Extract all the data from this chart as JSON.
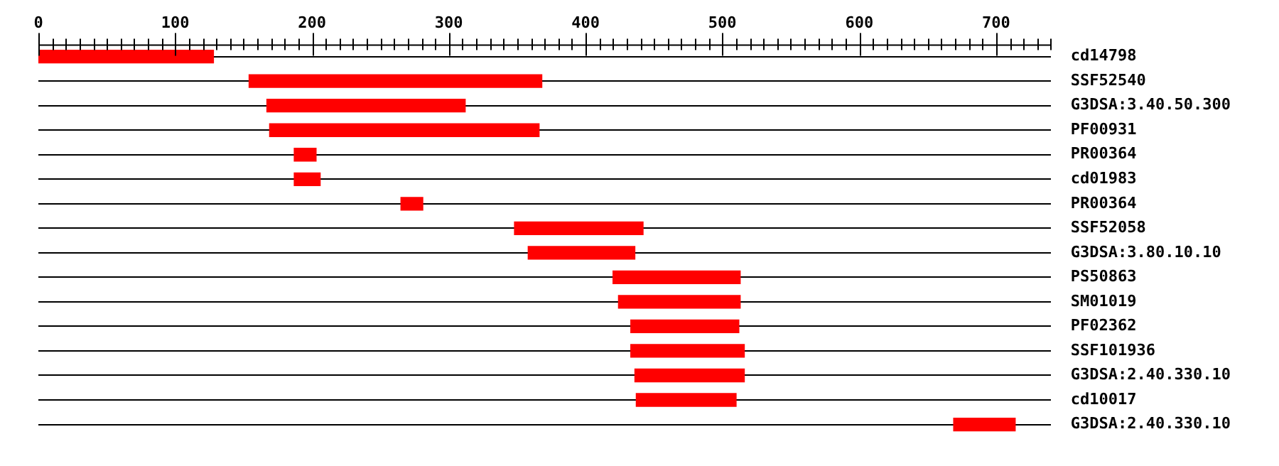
{
  "chart_data": {
    "type": "bar",
    "orientation": "horizontal",
    "grid": "y",
    "legend": false,
    "categories": [
      "cd14798",
      "SSF52540",
      "G3DSA:3.40.50.300",
      "PF00931",
      "PR00364",
      "cd01983",
      "PR00364",
      "SSF52058",
      "G3DSA:3.80.10.10",
      "PS50863",
      "SM01019",
      "PF02362",
      "SSF101936",
      "G3DSA:2.40.330.10",
      "cd10017",
      "G3DSA:2.40.330.10"
    ],
    "base": [
      0,
      154,
      167,
      169,
      187,
      187,
      265,
      348,
      358,
      420,
      424,
      433,
      433,
      436,
      437,
      669
    ],
    "values": [
      128,
      214,
      145,
      197,
      16,
      19,
      16,
      94,
      78,
      93,
      89,
      79,
      83,
      80,
      73,
      45
    ],
    "color": "#ff0000",
    "xlim": [
      0,
      740
    ],
    "xticks": [
      0,
      {
        "value": 10,
        "label": null
      },
      {
        "value": 20,
        "label": null
      },
      {
        "value": 30,
        "label": null
      },
      {
        "value": 40,
        "label": null
      },
      {
        "value": 50,
        "label": null
      },
      {
        "value": 60,
        "label": null
      },
      {
        "value": 70,
        "label": null
      },
      {
        "value": 80,
        "label": null
      },
      {
        "value": 90,
        "label": null
      },
      100,
      {
        "value": 110,
        "label": null
      },
      {
        "value": 120,
        "label": null
      },
      {
        "value": 130,
        "label": null
      },
      {
        "value": 140,
        "label": null
      },
      {
        "value": 150,
        "label": null
      },
      {
        "value": 160,
        "label": null
      },
      {
        "value": 170,
        "label": null
      },
      {
        "value": 180,
        "label": null
      },
      {
        "value": 190,
        "label": null
      },
      200,
      {
        "value": 210,
        "label": null
      },
      {
        "value": 220,
        "label": null
      },
      {
        "value": 230,
        "label": null
      },
      {
        "value": 240,
        "label": null
      },
      {
        "value": 250,
        "label": null
      },
      {
        "value": 260,
        "label": null
      },
      {
        "value": 270,
        "label": null
      },
      {
        "value": 280,
        "label": null
      },
      {
        "value": 290,
        "label": null
      },
      300,
      {
        "value": 310,
        "label": null
      },
      {
        "value": 320,
        "label": null
      },
      {
        "value": 330,
        "label": null
      },
      {
        "value": 340,
        "label": null
      },
      {
        "value": 350,
        "label": null
      },
      {
        "value": 360,
        "label": null
      },
      {
        "value": 370,
        "label": null
      },
      {
        "value": 380,
        "label": null
      },
      {
        "value": 390,
        "label": null
      },
      400,
      {
        "value": 410,
        "label": null
      },
      {
        "value": 420,
        "label": null
      },
      {
        "value": 430,
        "label": null
      },
      {
        "value": 440,
        "label": null
      },
      {
        "value": 450,
        "label": null
      },
      {
        "value": 460,
        "label": null
      },
      {
        "value": 470,
        "label": null
      },
      {
        "value": 480,
        "label": null
      },
      {
        "value": 490,
        "label": null
      },
      500,
      {
        "value": 510,
        "label": null
      },
      {
        "value": 520,
        "label": null
      },
      {
        "value": 530,
        "label": null
      },
      {
        "value": 540,
        "label": null
      },
      {
        "value": 550,
        "label": null
      },
      {
        "value": 560,
        "label": null
      },
      {
        "value": 570,
        "label": null
      },
      {
        "value": 580,
        "label": null
      },
      {
        "value": 590,
        "label": null
      },
      600,
      {
        "value": 610,
        "label": null
      },
      {
        "value": 620,
        "label": null
      },
      {
        "value": 630,
        "label": null
      },
      {
        "value": 640,
        "label": null
      },
      {
        "value": 650,
        "label": null
      },
      {
        "value": 660,
        "label": null
      },
      {
        "value": 670,
        "label": null
      },
      {
        "value": 680,
        "label": null
      },
      {
        "value": 690,
        "label": null
      },
      700,
      {
        "value": 710,
        "label": null
      },
      {
        "value": 720,
        "label": null
      },
      {
        "value": 730,
        "label": null
      },
      {
        "value": 740,
        "label": null
      }
    ]
  }
}
